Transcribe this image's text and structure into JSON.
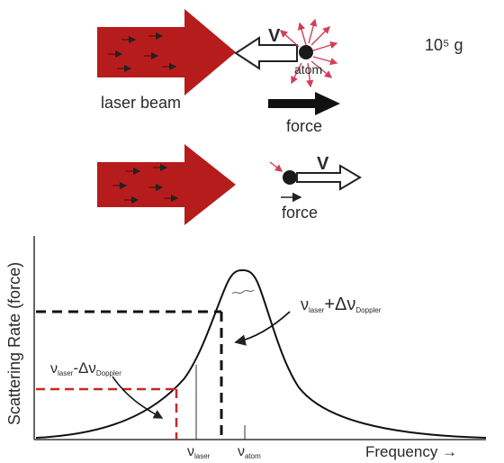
{
  "top_panel": {
    "velocity_label": "V",
    "atom_label": "atom",
    "laser_label": "laser beam",
    "force_label": "force",
    "accel_label": "10⁵ g"
  },
  "bottom_panel": {
    "velocity_label": "V",
    "force_label": "force"
  },
  "graph": {
    "y_label": "Scattering Rate (force)",
    "x_label": "Frequency →",
    "annot_plus": {
      "nu": "ν",
      "sub1": "laser",
      "op": "+Δν",
      "sub2": "Doppler"
    },
    "annot_minus": {
      "nu": "ν",
      "sub1": "laser",
      "op": "-Δν",
      "sub2": "Doppler"
    },
    "tick_laser": {
      "nu": "ν",
      "sub": "laser"
    },
    "tick_atom": {
      "nu": "ν",
      "sub": "atom"
    }
  },
  "colors": {
    "beam": "#b71c1c",
    "dash_black": "#111111",
    "dash_red": "#c62828",
    "emission": "#d0405a"
  }
}
